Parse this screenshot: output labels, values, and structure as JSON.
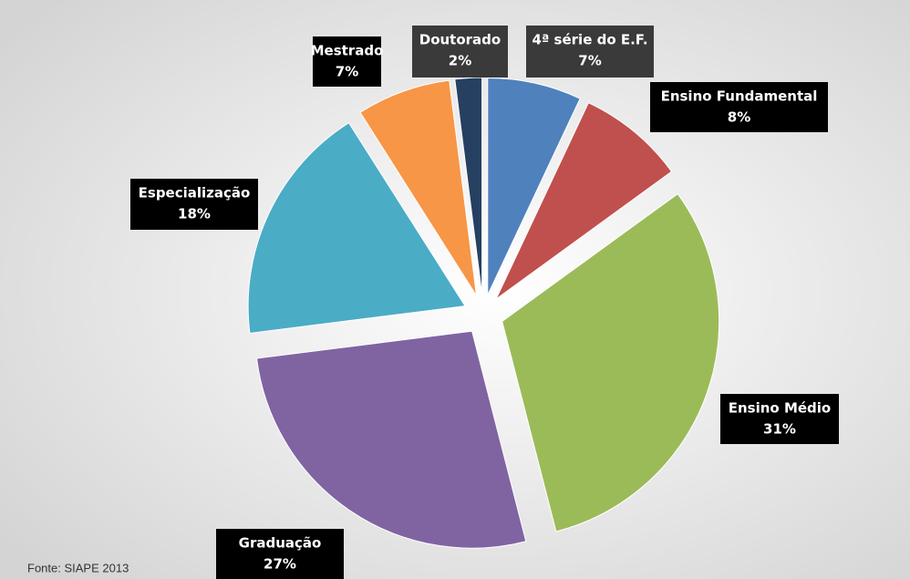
{
  "chart_data": {
    "type": "pie",
    "categories": [
      "4ª série do E.F.",
      "Ensino  Fundamental",
      "Ensino  Médio",
      "Graduação",
      "Especialização",
      "Mestrado",
      "Doutorado"
    ],
    "values": [
      7,
      8,
      31,
      27,
      18,
      7,
      2
    ],
    "value_labels": [
      "7%",
      "8%",
      "31%",
      "27%",
      "18%",
      "7%",
      "2%"
    ],
    "colors": [
      "#4f81bd",
      "#c0504d",
      "#9bbb59",
      "#8064a2",
      "#4bacc6",
      "#f79646",
      "#254061"
    ],
    "source": "Fonte: SIAPE 2013"
  }
}
